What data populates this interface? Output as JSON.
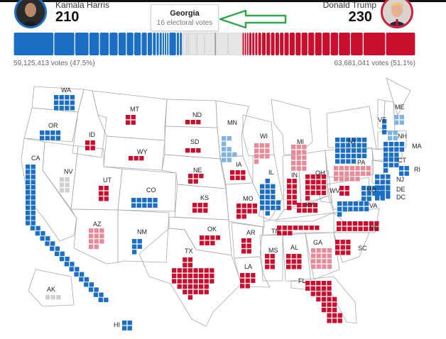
{
  "header": {
    "dem": {
      "name": "Kamala Harris",
      "electoral_votes": "210",
      "popular_vote": "59,125,413 votes (47.5%)",
      "color": "#1a6fc4"
    },
    "rep": {
      "name": "Donald Trump",
      "electoral_votes": "230",
      "popular_vote": "63,681,041 votes (51.1%)",
      "color": "#cc1f3a"
    }
  },
  "tooltip": {
    "state": "Georgia",
    "detail": "16 electoral votes"
  },
  "annotation_arrow": {
    "color": "#2fa84a"
  },
  "colors": {
    "safe_dem": "#1a6fc4",
    "lean_dem": "#7fb3e0",
    "safe_rep": "#c8102e",
    "lean_rep": "#e88a9a",
    "undecided": "#cfcfcf",
    "border": "#9a9a9a"
  },
  "states": [
    {
      "abbr": "WA",
      "ev": 12,
      "status": "safe_dem"
    },
    {
      "abbr": "OR",
      "ev": 8,
      "status": "safe_dem"
    },
    {
      "abbr": "CA",
      "ev": 54,
      "status": "safe_dem"
    },
    {
      "abbr": "NV",
      "ev": 6,
      "status": "undecided"
    },
    {
      "abbr": "ID",
      "ev": 4,
      "status": "safe_rep"
    },
    {
      "abbr": "MT",
      "ev": 4,
      "status": "safe_rep"
    },
    {
      "abbr": "WY",
      "ev": 3,
      "status": "safe_rep"
    },
    {
      "abbr": "UT",
      "ev": 6,
      "status": "safe_rep"
    },
    {
      "abbr": "AZ",
      "ev": 11,
      "status": "lean_rep"
    },
    {
      "abbr": "CO",
      "ev": 10,
      "status": "safe_dem"
    },
    {
      "abbr": "NM",
      "ev": 5,
      "status": "safe_dem"
    },
    {
      "abbr": "ND",
      "ev": 3,
      "status": "safe_rep"
    },
    {
      "abbr": "SD",
      "ev": 3,
      "status": "safe_rep"
    },
    {
      "abbr": "NE",
      "ev": 5,
      "status": "safe_rep"
    },
    {
      "abbr": "KS",
      "ev": 6,
      "status": "safe_rep"
    },
    {
      "abbr": "OK",
      "ev": 7,
      "status": "safe_rep"
    },
    {
      "abbr": "TX",
      "ev": 40,
      "status": "safe_rep"
    },
    {
      "abbr": "MN",
      "ev": 10,
      "status": "lean_dem"
    },
    {
      "abbr": "IA",
      "ev": 6,
      "status": "safe_rep"
    },
    {
      "abbr": "MO",
      "ev": 10,
      "status": "safe_rep"
    },
    {
      "abbr": "AR",
      "ev": 6,
      "status": "safe_rep"
    },
    {
      "abbr": "LA",
      "ev": 8,
      "status": "safe_rep"
    },
    {
      "abbr": "WI",
      "ev": 10,
      "status": "lean_rep"
    },
    {
      "abbr": "IL",
      "ev": 19,
      "status": "safe_dem"
    },
    {
      "abbr": "MI",
      "ev": 15,
      "status": "lean_rep"
    },
    {
      "abbr": "IN",
      "ev": 11,
      "status": "safe_rep"
    },
    {
      "abbr": "OH",
      "ev": 17,
      "status": "safe_rep"
    },
    {
      "abbr": "KY",
      "ev": 8,
      "status": "safe_rep"
    },
    {
      "abbr": "TN",
      "ev": 11,
      "status": "safe_rep"
    },
    {
      "abbr": "MS",
      "ev": 6,
      "status": "safe_rep"
    },
    {
      "abbr": "AL",
      "ev": 9,
      "status": "safe_rep"
    },
    {
      "abbr": "GA",
      "ev": 16,
      "status": "lean_rep"
    },
    {
      "abbr": "FL",
      "ev": 30,
      "status": "safe_rep"
    },
    {
      "abbr": "SC",
      "ev": 9,
      "status": "safe_rep"
    },
    {
      "abbr": "NC",
      "ev": 16,
      "status": "safe_rep"
    },
    {
      "abbr": "VA",
      "ev": 13,
      "status": "safe_dem"
    },
    {
      "abbr": "WV",
      "ev": 4,
      "status": "safe_rep"
    },
    {
      "abbr": "PA",
      "ev": 19,
      "status": "lean_rep"
    },
    {
      "abbr": "NY",
      "ev": 28,
      "status": "safe_dem"
    },
    {
      "abbr": "VT",
      "ev": 3,
      "status": "safe_dem"
    },
    {
      "abbr": "NH",
      "ev": 4,
      "status": "lean_dem"
    },
    {
      "abbr": "ME",
      "ev": 4,
      "status": "lean_dem"
    },
    {
      "abbr": "MA",
      "ev": 11,
      "status": "safe_dem"
    },
    {
      "abbr": "RI",
      "ev": 4,
      "status": "safe_dem"
    },
    {
      "abbr": "CT",
      "ev": 7,
      "status": "safe_dem"
    },
    {
      "abbr": "NJ",
      "ev": 14,
      "status": "safe_dem"
    },
    {
      "abbr": "DE",
      "ev": 3,
      "status": "safe_dem"
    },
    {
      "abbr": "MD",
      "ev": 10,
      "status": "safe_dem"
    },
    {
      "abbr": "DC",
      "ev": 3,
      "status": "safe_dem"
    },
    {
      "abbr": "AK",
      "ev": 3,
      "status": "undecided"
    },
    {
      "abbr": "HI",
      "ev": 4,
      "status": "safe_dem"
    }
  ]
}
